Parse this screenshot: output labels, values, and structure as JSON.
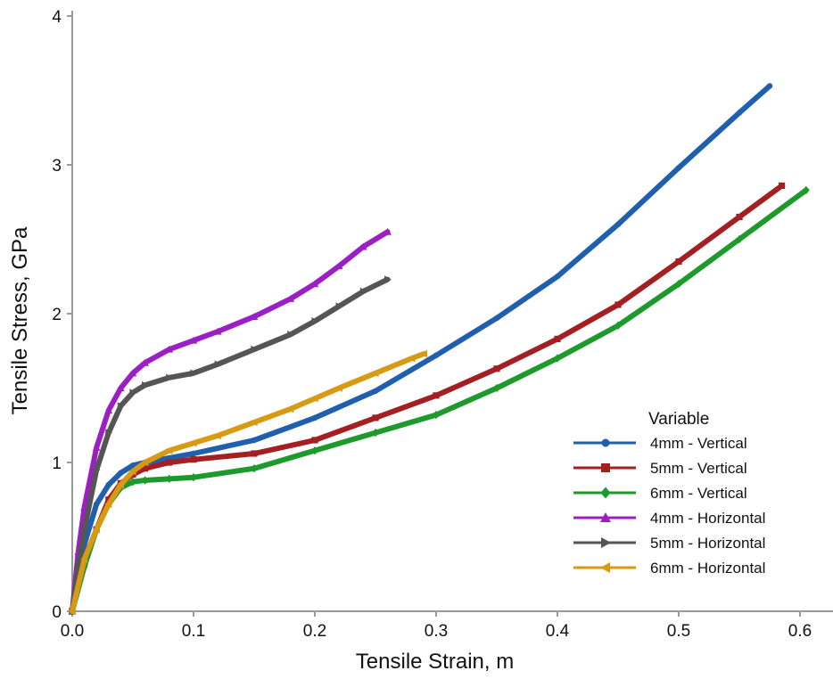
{
  "chart_data": {
    "type": "line",
    "title": "",
    "xlabel": "Tensile Strain, m",
    "ylabel": "Tensile Stress, GPa",
    "xlim": [
      0,
      0.625
    ],
    "ylim": [
      0,
      4
    ],
    "xticks": [
      "0.0",
      "0.1",
      "0.2",
      "0.3",
      "0.4",
      "0.5",
      "0.6"
    ],
    "yticks": [
      "0",
      "1",
      "2",
      "3",
      "4"
    ],
    "grid": false,
    "legend": {
      "title": "Variable",
      "placement": "right"
    },
    "series": [
      {
        "name": "4mm - Vertical",
        "color": "#1f5fae",
        "marker": "circle",
        "x": [
          0.0,
          0.005,
          0.01,
          0.02,
          0.03,
          0.04,
          0.05,
          0.06,
          0.08,
          0.1,
          0.15,
          0.2,
          0.25,
          0.3,
          0.35,
          0.4,
          0.45,
          0.5,
          0.55,
          0.575
        ],
        "y": [
          0.0,
          0.2,
          0.45,
          0.72,
          0.85,
          0.93,
          0.98,
          1.0,
          1.03,
          1.06,
          1.15,
          1.3,
          1.48,
          1.72,
          1.97,
          2.25,
          2.6,
          2.98,
          3.35,
          3.53
        ]
      },
      {
        "name": "5mm - Vertical",
        "color": "#a31f22",
        "marker": "square",
        "x": [
          0.0,
          0.01,
          0.02,
          0.03,
          0.04,
          0.05,
          0.06,
          0.08,
          0.1,
          0.15,
          0.2,
          0.25,
          0.3,
          0.35,
          0.4,
          0.45,
          0.5,
          0.55,
          0.585
        ],
        "y": [
          0.0,
          0.35,
          0.55,
          0.75,
          0.86,
          0.92,
          0.96,
          1.0,
          1.02,
          1.06,
          1.15,
          1.3,
          1.45,
          1.63,
          1.83,
          2.06,
          2.35,
          2.65,
          2.86
        ]
      },
      {
        "name": "6mm - Vertical",
        "color": "#1e9a2c",
        "marker": "diamond",
        "x": [
          0.0,
          0.01,
          0.02,
          0.03,
          0.04,
          0.05,
          0.06,
          0.08,
          0.1,
          0.15,
          0.2,
          0.25,
          0.3,
          0.35,
          0.4,
          0.45,
          0.5,
          0.55,
          0.605
        ],
        "y": [
          0.0,
          0.3,
          0.55,
          0.72,
          0.83,
          0.87,
          0.88,
          0.89,
          0.9,
          0.96,
          1.08,
          1.2,
          1.32,
          1.5,
          1.7,
          1.92,
          2.2,
          2.5,
          2.83
        ]
      },
      {
        "name": "4mm - Horizontal",
        "color": "#9b1fc4",
        "marker": "triangle-up",
        "x": [
          0.0,
          0.005,
          0.01,
          0.02,
          0.03,
          0.04,
          0.05,
          0.06,
          0.08,
          0.1,
          0.12,
          0.15,
          0.18,
          0.2,
          0.22,
          0.24,
          0.26
        ],
        "y": [
          0.0,
          0.4,
          0.7,
          1.1,
          1.35,
          1.5,
          1.6,
          1.67,
          1.76,
          1.82,
          1.88,
          1.98,
          2.1,
          2.2,
          2.32,
          2.45,
          2.55
        ]
      },
      {
        "name": "5mm - Horizontal",
        "color": "#555555",
        "marker": "triangle-right",
        "x": [
          0.0,
          0.005,
          0.01,
          0.02,
          0.03,
          0.04,
          0.05,
          0.06,
          0.08,
          0.1,
          0.12,
          0.15,
          0.18,
          0.2,
          0.22,
          0.24,
          0.26
        ],
        "y": [
          0.0,
          0.3,
          0.55,
          0.95,
          1.2,
          1.38,
          1.47,
          1.52,
          1.57,
          1.6,
          1.66,
          1.76,
          1.86,
          1.95,
          2.05,
          2.15,
          2.23
        ]
      },
      {
        "name": "6mm - Horizontal",
        "color": "#d89a12",
        "marker": "triangle-left",
        "x": [
          0.0,
          0.01,
          0.02,
          0.03,
          0.04,
          0.05,
          0.06,
          0.08,
          0.1,
          0.12,
          0.15,
          0.18,
          0.2,
          0.22,
          0.25,
          0.28,
          0.29
        ],
        "y": [
          0.0,
          0.35,
          0.55,
          0.72,
          0.85,
          0.94,
          1.0,
          1.08,
          1.13,
          1.18,
          1.27,
          1.36,
          1.43,
          1.5,
          1.6,
          1.7,
          1.73
        ]
      }
    ]
  }
}
